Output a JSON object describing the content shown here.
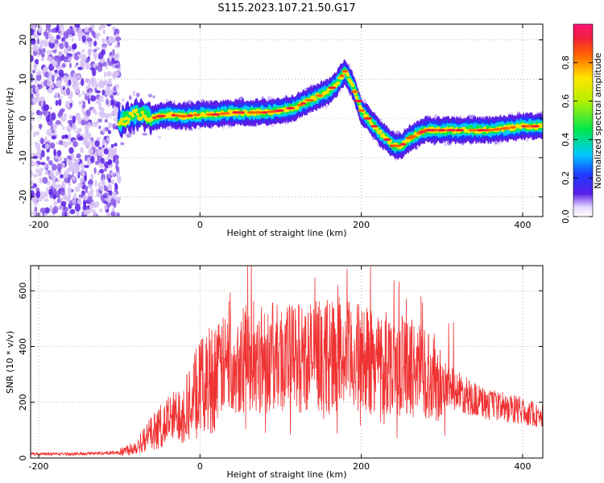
{
  "title": "S115.2023.107.21.50.G17",
  "chart_data": [
    {
      "type": "heatmap",
      "xlabel": "Height of straight line (km)",
      "ylabel": "Frequency (Hz)",
      "xlim": [
        -210,
        425
      ],
      "ylim": [
        -25,
        24
      ],
      "x_ticks": [
        -200,
        0,
        200,
        400
      ],
      "y_ticks": [
        -20,
        -10,
        0,
        10,
        20
      ],
      "grid": true,
      "colorbar": {
        "label": "Normalized spectral amplitude",
        "range": [
          0,
          1
        ],
        "ticks": [
          "0.0",
          "0.2",
          "0.4",
          "0.6",
          "0.8"
        ]
      },
      "ridge": {
        "x": [
          -100,
          -90,
          -80,
          -70,
          -60,
          -40,
          -20,
          0,
          20,
          40,
          60,
          80,
          100,
          120,
          140,
          160,
          170,
          180,
          190,
          200,
          220,
          240,
          250,
          260,
          280,
          300,
          320,
          340,
          360,
          380,
          400,
          425
        ],
        "y": [
          -1,
          0,
          1,
          1,
          0,
          1,
          0.5,
          1,
          1,
          1.5,
          1.5,
          1.5,
          2,
          3,
          5,
          7,
          9,
          12,
          8,
          2,
          -3,
          -7,
          -7,
          -5,
          -3,
          -3,
          -3,
          -3,
          -3,
          -2.5,
          -2,
          -2
        ]
      },
      "noise_region_x": [
        -210,
        -100
      ]
    },
    {
      "type": "line",
      "xlabel": "Height of straight line (km)",
      "ylabel": "SNR (10 * v/v)",
      "xlim": [
        -210,
        425
      ],
      "ylim": [
        0,
        690
      ],
      "x_ticks": [
        -200,
        0,
        200,
        400
      ],
      "y_ticks": [
        0,
        200,
        400,
        600
      ],
      "grid": true,
      "series_color": "#f03232",
      "envelope": {
        "x": [
          -210,
          -150,
          -100,
          -80,
          -60,
          -40,
          -20,
          0,
          20,
          40,
          80,
          120,
          160,
          200,
          240,
          280,
          300,
          320,
          340,
          360,
          380,
          400,
          425
        ],
        "y": [
          15,
          15,
          20,
          40,
          90,
          130,
          170,
          250,
          310,
          350,
          360,
          360,
          370,
          360,
          340,
          310,
          270,
          240,
          210,
          190,
          180,
          170,
          150
        ]
      }
    }
  ]
}
